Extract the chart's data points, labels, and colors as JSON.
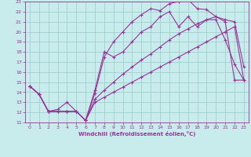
{
  "background_color": "#c8ecec",
  "grid_color": "#a0d0d0",
  "line_color": "#993399",
  "xlim": [
    -0.5,
    23.5
  ],
  "ylim": [
    11,
    23
  ],
  "xlabel": "Windchill (Refroidissement éolien,°C)",
  "xticks": [
    0,
    1,
    2,
    3,
    4,
    5,
    6,
    7,
    8,
    9,
    10,
    11,
    12,
    13,
    14,
    15,
    16,
    17,
    18,
    19,
    20,
    21,
    22,
    23
  ],
  "yticks": [
    11,
    12,
    13,
    14,
    15,
    16,
    17,
    18,
    19,
    20,
    21,
    22,
    23
  ],
  "series1_x": [
    0,
    1,
    2,
    3,
    4,
    5,
    6,
    7,
    8,
    9,
    10,
    11,
    12,
    13,
    14,
    15,
    16,
    17,
    18,
    19,
    20,
    21,
    22,
    23
  ],
  "series1_y": [
    14.6,
    13.8,
    12.1,
    12.1,
    12.1,
    12.1,
    11.2,
    13.9,
    17.5,
    19.0,
    20.0,
    21.0,
    21.7,
    22.3,
    22.1,
    22.8,
    23.0,
    23.2,
    22.3,
    22.2,
    21.5,
    21.2,
    21.0,
    16.5
  ],
  "series2_x": [
    0,
    1,
    2,
    3,
    4,
    5,
    6,
    7,
    8,
    9,
    10,
    11,
    12,
    13,
    14,
    15,
    16,
    17,
    18,
    19,
    20,
    21,
    22,
    23
  ],
  "series2_y": [
    14.6,
    13.8,
    12.1,
    12.3,
    13.0,
    12.1,
    11.2,
    14.2,
    18.0,
    17.5,
    18.0,
    19.0,
    20.0,
    20.5,
    21.5,
    22.0,
    20.5,
    21.5,
    20.5,
    21.2,
    21.2,
    19.2,
    16.8,
    15.2
  ],
  "series3_x": [
    0,
    1,
    2,
    3,
    4,
    5,
    6,
    7,
    8,
    9,
    10,
    11,
    12,
    13,
    14,
    15,
    16,
    17,
    18,
    19,
    20,
    21,
    22,
    23
  ],
  "series3_y": [
    14.6,
    13.8,
    12.1,
    12.1,
    12.1,
    12.1,
    11.2,
    13.0,
    13.5,
    14.0,
    14.5,
    15.0,
    15.5,
    16.0,
    16.5,
    17.0,
    17.5,
    18.0,
    18.5,
    19.0,
    19.5,
    20.0,
    20.5,
    15.2
  ],
  "series4_x": [
    0,
    1,
    2,
    3,
    4,
    5,
    6,
    7,
    8,
    9,
    10,
    11,
    12,
    13,
    14,
    15,
    16,
    17,
    18,
    19,
    20,
    21,
    22,
    23
  ],
  "series4_y": [
    14.6,
    13.8,
    12.1,
    12.1,
    12.1,
    12.1,
    11.2,
    13.3,
    14.2,
    15.0,
    15.8,
    16.5,
    17.2,
    17.8,
    18.5,
    19.2,
    19.8,
    20.3,
    20.8,
    21.2,
    21.5,
    21.0,
    15.2,
    15.2
  ]
}
